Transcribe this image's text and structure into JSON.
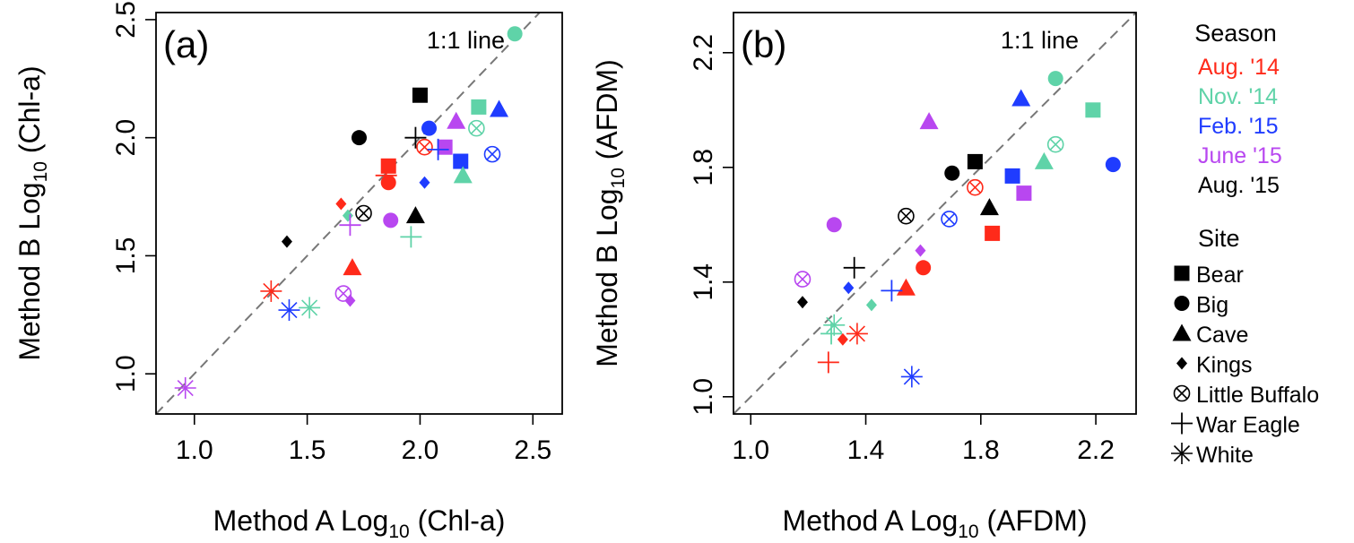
{
  "legend": {
    "season_title": "Season",
    "seasons": [
      {
        "key": "aug14",
        "label": "Aug. '14",
        "color": "#ff2a1a"
      },
      {
        "key": "nov14",
        "label": "Nov. '14",
        "color": "#5fd3a8"
      },
      {
        "key": "feb15",
        "label": "Feb. '15",
        "color": "#1f3cff"
      },
      {
        "key": "jun15",
        "label": "June '15",
        "color": "#b847f0"
      },
      {
        "key": "aug15",
        "label": "Aug. '15",
        "color": "#000000"
      }
    ],
    "site_title": "Site",
    "sites": [
      {
        "key": "bear",
        "label": "Bear",
        "shape": "square"
      },
      {
        "key": "big",
        "label": "Big",
        "shape": "circle"
      },
      {
        "key": "cave",
        "label": "Cave",
        "shape": "triangle"
      },
      {
        "key": "kings",
        "label": "Kings",
        "shape": "diamond"
      },
      {
        "key": "little_buffalo",
        "label": "Little Buffalo",
        "shape": "circle-x"
      },
      {
        "key": "war_eagle",
        "label": "War Eagle",
        "shape": "plus"
      },
      {
        "key": "white",
        "label": "White",
        "shape": "asterisk"
      }
    ]
  },
  "chart_data": [
    {
      "type": "scatter",
      "panel_label": "(a)",
      "annotation": "1:1 line",
      "xlabel_prefix": "Method A Log",
      "xlabel_sub": "10",
      "xlabel_suffix": " (Chl-a)",
      "ylabel_prefix": "Method B Log",
      "ylabel_sub": "10",
      "ylabel_suffix": " (Chl-a)",
      "xlim": [
        0.83,
        2.63
      ],
      "ylim": [
        0.83,
        2.53
      ],
      "xticks": [
        1.0,
        1.5,
        2.0,
        2.5
      ],
      "yticks": [
        1.0,
        1.5,
        2.0,
        2.5
      ],
      "xtick_labels": [
        "1.0",
        "1.5",
        "2.0",
        "2.5"
      ],
      "ytick_labels": [
        "1.0",
        "1.5",
        "2.0",
        "2.5"
      ],
      "points": [
        {
          "site": "bear",
          "season": "aug14",
          "x": 1.86,
          "y": 1.88
        },
        {
          "site": "bear",
          "season": "nov14",
          "x": 2.26,
          "y": 2.13
        },
        {
          "site": "bear",
          "season": "feb15",
          "x": 2.18,
          "y": 1.9
        },
        {
          "site": "bear",
          "season": "jun15",
          "x": 2.11,
          "y": 1.96
        },
        {
          "site": "bear",
          "season": "aug15",
          "x": 2.0,
          "y": 2.18
        },
        {
          "site": "big",
          "season": "aug14",
          "x": 1.86,
          "y": 1.81
        },
        {
          "site": "big",
          "season": "nov14",
          "x": 2.42,
          "y": 2.44
        },
        {
          "site": "big",
          "season": "feb15",
          "x": 2.04,
          "y": 2.04
        },
        {
          "site": "big",
          "season": "jun15",
          "x": 1.87,
          "y": 1.65
        },
        {
          "site": "big",
          "season": "aug15",
          "x": 1.73,
          "y": 2.0
        },
        {
          "site": "cave",
          "season": "aug14",
          "x": 1.7,
          "y": 1.45
        },
        {
          "site": "cave",
          "season": "nov14",
          "x": 2.19,
          "y": 1.84
        },
        {
          "site": "cave",
          "season": "feb15",
          "x": 2.35,
          "y": 2.12
        },
        {
          "site": "cave",
          "season": "jun15",
          "x": 2.16,
          "y": 2.07
        },
        {
          "site": "cave",
          "season": "aug15",
          "x": 1.98,
          "y": 1.67
        },
        {
          "site": "kings",
          "season": "aug14",
          "x": 1.65,
          "y": 1.72
        },
        {
          "site": "kings",
          "season": "nov14",
          "x": 1.68,
          "y": 1.67
        },
        {
          "site": "kings",
          "season": "feb15",
          "x": 2.02,
          "y": 1.81
        },
        {
          "site": "kings",
          "season": "jun15",
          "x": 1.69,
          "y": 1.31
        },
        {
          "site": "kings",
          "season": "aug15",
          "x": 1.41,
          "y": 1.56
        },
        {
          "site": "little_buffalo",
          "season": "aug14",
          "x": 2.02,
          "y": 1.96
        },
        {
          "site": "little_buffalo",
          "season": "nov14",
          "x": 2.25,
          "y": 2.04
        },
        {
          "site": "little_buffalo",
          "season": "feb15",
          "x": 2.32,
          "y": 1.93
        },
        {
          "site": "little_buffalo",
          "season": "jun15",
          "x": 1.66,
          "y": 1.34
        },
        {
          "site": "little_buffalo",
          "season": "aug15",
          "x": 1.75,
          "y": 1.68
        },
        {
          "site": "war_eagle",
          "season": "aug14",
          "x": 1.85,
          "y": 1.84
        },
        {
          "site": "war_eagle",
          "season": "nov14",
          "x": 1.96,
          "y": 1.58
        },
        {
          "site": "war_eagle",
          "season": "feb15",
          "x": 2.08,
          "y": 1.95
        },
        {
          "site": "war_eagle",
          "season": "jun15",
          "x": 1.69,
          "y": 1.63
        },
        {
          "site": "war_eagle",
          "season": "aug15",
          "x": 1.98,
          "y": 2.0
        },
        {
          "site": "white",
          "season": "aug14",
          "x": 1.34,
          "y": 1.35
        },
        {
          "site": "white",
          "season": "nov14",
          "x": 1.51,
          "y": 1.28
        },
        {
          "site": "white",
          "season": "feb15",
          "x": 1.42,
          "y": 1.27
        },
        {
          "site": "white",
          "season": "jun15",
          "x": 0.96,
          "y": 0.94
        }
      ]
    },
    {
      "type": "scatter",
      "panel_label": "(b)",
      "annotation": "1:1 line",
      "xlabel_prefix": "Method A Log",
      "xlabel_sub": "10",
      "xlabel_suffix": " (AFDM)",
      "ylabel_prefix": "Method B Log",
      "ylabel_sub": "10",
      "ylabel_suffix": " (AFDM)",
      "xlim": [
        0.94,
        2.34
      ],
      "ylim": [
        0.94,
        2.34
      ],
      "xticks": [
        1.0,
        1.4,
        1.8,
        2.2
      ],
      "yticks": [
        1.0,
        1.4,
        1.8,
        2.2
      ],
      "xtick_labels": [
        "1.0",
        "1.4",
        "1.8",
        "2.2"
      ],
      "ytick_labels": [
        "1.0",
        "1.4",
        "1.8",
        "2.2"
      ],
      "points": [
        {
          "site": "bear",
          "season": "aug14",
          "x": 1.84,
          "y": 1.57
        },
        {
          "site": "bear",
          "season": "nov14",
          "x": 2.19,
          "y": 2.0
        },
        {
          "site": "bear",
          "season": "feb15",
          "x": 1.91,
          "y": 1.77
        },
        {
          "site": "bear",
          "season": "jun15",
          "x": 1.95,
          "y": 1.71
        },
        {
          "site": "bear",
          "season": "aug15",
          "x": 1.78,
          "y": 1.82
        },
        {
          "site": "big",
          "season": "aug14",
          "x": 1.6,
          "y": 1.45
        },
        {
          "site": "big",
          "season": "nov14",
          "x": 2.06,
          "y": 2.11
        },
        {
          "site": "big",
          "season": "feb15",
          "x": 2.26,
          "y": 1.81
        },
        {
          "site": "big",
          "season": "jun15",
          "x": 1.29,
          "y": 1.6
        },
        {
          "site": "big",
          "season": "aug15",
          "x": 1.7,
          "y": 1.78
        },
        {
          "site": "cave",
          "season": "aug14",
          "x": 1.54,
          "y": 1.38
        },
        {
          "site": "cave",
          "season": "nov14",
          "x": 2.02,
          "y": 1.82
        },
        {
          "site": "cave",
          "season": "feb15",
          "x": 1.94,
          "y": 2.04
        },
        {
          "site": "cave",
          "season": "jun15",
          "x": 1.62,
          "y": 1.96
        },
        {
          "site": "cave",
          "season": "aug15",
          "x": 1.83,
          "y": 1.66
        },
        {
          "site": "kings",
          "season": "aug14",
          "x": 1.32,
          "y": 1.2
        },
        {
          "site": "kings",
          "season": "nov14",
          "x": 1.42,
          "y": 1.32
        },
        {
          "site": "kings",
          "season": "feb15",
          "x": 1.34,
          "y": 1.38
        },
        {
          "site": "kings",
          "season": "jun15",
          "x": 1.59,
          "y": 1.51
        },
        {
          "site": "kings",
          "season": "aug15",
          "x": 1.18,
          "y": 1.33
        },
        {
          "site": "little_buffalo",
          "season": "aug14",
          "x": 1.78,
          "y": 1.73
        },
        {
          "site": "little_buffalo",
          "season": "nov14",
          "x": 2.06,
          "y": 1.88
        },
        {
          "site": "little_buffalo",
          "season": "feb15",
          "x": 1.69,
          "y": 1.62
        },
        {
          "site": "little_buffalo",
          "season": "jun15",
          "x": 1.18,
          "y": 1.41
        },
        {
          "site": "little_buffalo",
          "season": "aug15",
          "x": 1.54,
          "y": 1.63
        },
        {
          "site": "war_eagle",
          "season": "aug14",
          "x": 1.27,
          "y": 1.12
        },
        {
          "site": "war_eagle",
          "season": "nov14",
          "x": 1.28,
          "y": 1.22
        },
        {
          "site": "war_eagle",
          "season": "feb15",
          "x": 1.49,
          "y": 1.37
        },
        {
          "site": "war_eagle",
          "season": "aug15",
          "x": 1.36,
          "y": 1.45
        },
        {
          "site": "white",
          "season": "aug14",
          "x": 1.37,
          "y": 1.22
        },
        {
          "site": "white",
          "season": "nov14",
          "x": 1.29,
          "y": 1.25
        },
        {
          "site": "white",
          "season": "feb15",
          "x": 1.56,
          "y": 1.07
        }
      ]
    }
  ]
}
